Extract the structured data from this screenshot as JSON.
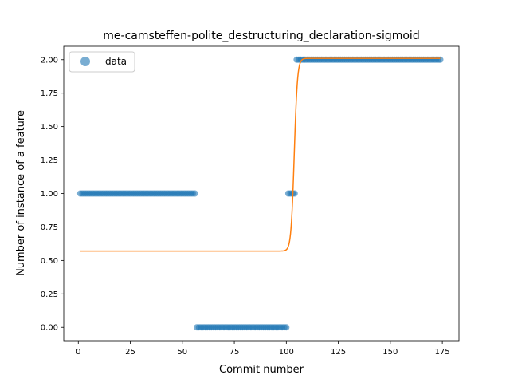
{
  "chart_data": {
    "type": "scatter",
    "title": "me-camsteffen-polite_destructuring_declaration-sigmoid",
    "xlabel": "Commit number",
    "ylabel": "Number of instance of a feature",
    "xlim": [
      -7,
      183
    ],
    "ylim": [
      -0.1,
      2.1
    ],
    "xticks": [
      0,
      25,
      50,
      75,
      100,
      125,
      150,
      175
    ],
    "yticks": [
      0.0,
      0.25,
      0.5,
      0.75,
      1.0,
      1.25,
      1.5,
      1.75,
      2.0
    ],
    "ytick_labels": [
      "0.00",
      "0.25",
      "0.50",
      "0.75",
      "1.00",
      "1.25",
      "1.50",
      "1.75",
      "2.00"
    ],
    "legend": {
      "position": "top-left",
      "entries": [
        "data"
      ]
    },
    "grid": false,
    "series": [
      {
        "name": "data",
        "kind": "scatter",
        "color": "#1f77b4",
        "segments": [
          {
            "x_start": 1,
            "x_end": 56,
            "y": 1
          },
          {
            "x_start": 57,
            "x_end": 100,
            "y": 0
          },
          {
            "x_start": 101,
            "x_end": 104,
            "y": 1
          },
          {
            "x_start": 105,
            "x_end": 174,
            "y": 2
          }
        ]
      },
      {
        "kind": "line",
        "color": "#ff7f0e",
        "model": "sigmoid",
        "x_range": [
          1,
          174
        ],
        "low": 0.57,
        "high": 2.01,
        "midpoint": 103.8,
        "steepness": 1.3
      }
    ]
  }
}
